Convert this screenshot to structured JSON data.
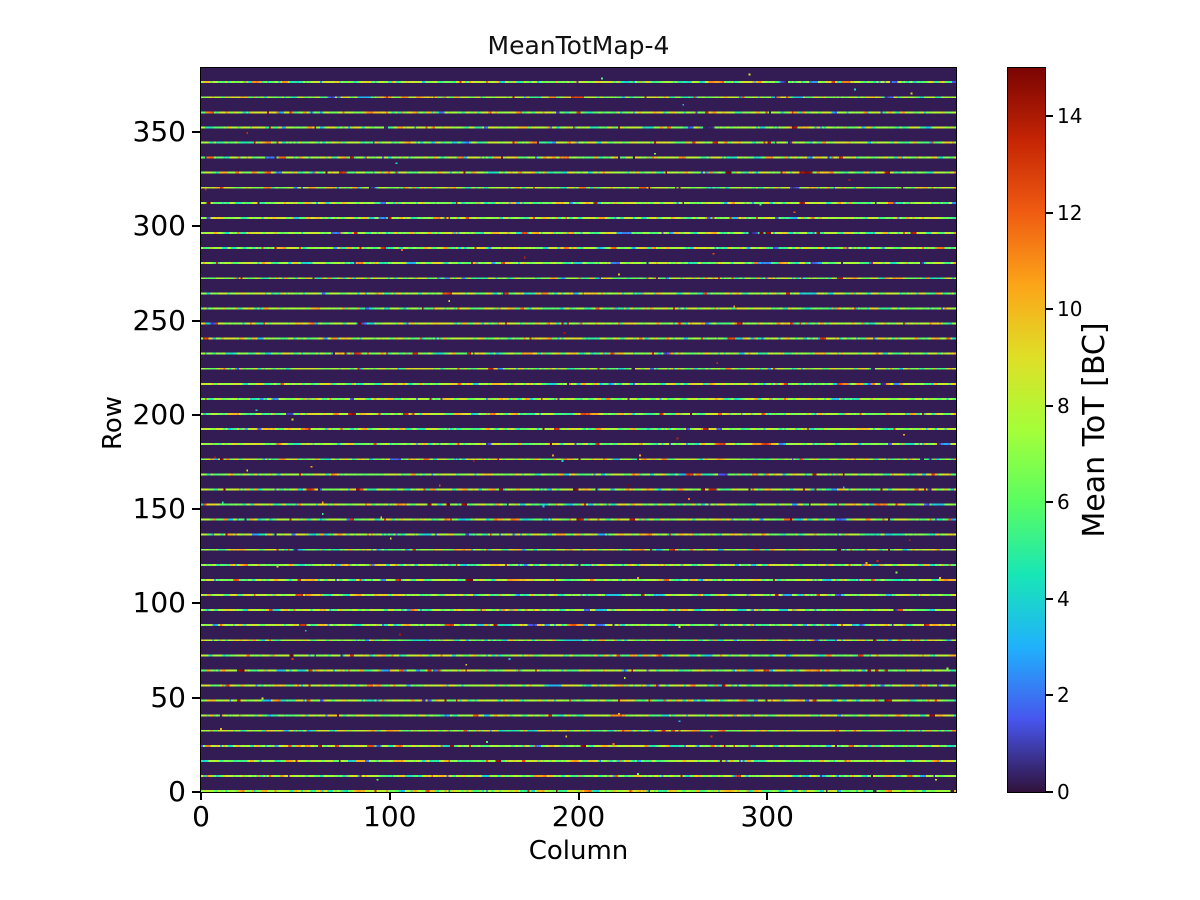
{
  "chart_data": {
    "type": "heatmap",
    "title": "MeanTotMap-4",
    "xlabel": "Column",
    "ylabel": "Row",
    "colorbar_label": "Mean ToT [BC]",
    "x_range": [
      0,
      400
    ],
    "y_range": [
      0,
      384
    ],
    "value_range": [
      0,
      15
    ],
    "x_ticks": [
      0,
      100,
      200,
      300
    ],
    "y_ticks": [
      0,
      50,
      100,
      150,
      200,
      250,
      300,
      350
    ],
    "colorbar_ticks": [
      0,
      2,
      4,
      6,
      8,
      10,
      12,
      14
    ],
    "grid": false,
    "legend": null,
    "colormap": {
      "name": "turbo",
      "stops": [
        [
          0.0,
          "#30123b"
        ],
        [
          0.1,
          "#4756ee"
        ],
        [
          0.2,
          "#20b1fc"
        ],
        [
          0.3,
          "#18e6b6"
        ],
        [
          0.4,
          "#59fd61"
        ],
        [
          0.5,
          "#a5fe39"
        ],
        [
          0.6,
          "#dfdf27"
        ],
        [
          0.7,
          "#fca519"
        ],
        [
          0.8,
          "#f05c12"
        ],
        [
          0.9,
          "#c52504"
        ],
        [
          1.0,
          "#7a0403"
        ]
      ]
    },
    "pattern": {
      "description": "384x400 pixel map: dark background (ToT ~0 BC) with a bright noisy horizontal line on every 8th row (rows 0,8,...,376). Line pixels average ~7.3 BC (green/yellow) with pixel-to-pixel noise spanning ~4-11 BC (cyan to orange), sparse hot pixels at 12-15 BC (red/dark red), sparse dead/dark pixels inside lines, and very sparse isolated hot pixels in the dark background.",
      "rows": 384,
      "cols": 400,
      "stripe_period": 8,
      "stripe_offset": 0,
      "background_value": 0.2,
      "stripe_mean": 7.3,
      "stripe_sigma": 1.9,
      "stripe_run_prob": 0.45,
      "hot_prob": 0.012,
      "gap_prob": 0.008,
      "background_speck_prob": 0.0004,
      "seed": 1337
    },
    "frame_color": "#000000",
    "background_color": "#ffffff"
  }
}
